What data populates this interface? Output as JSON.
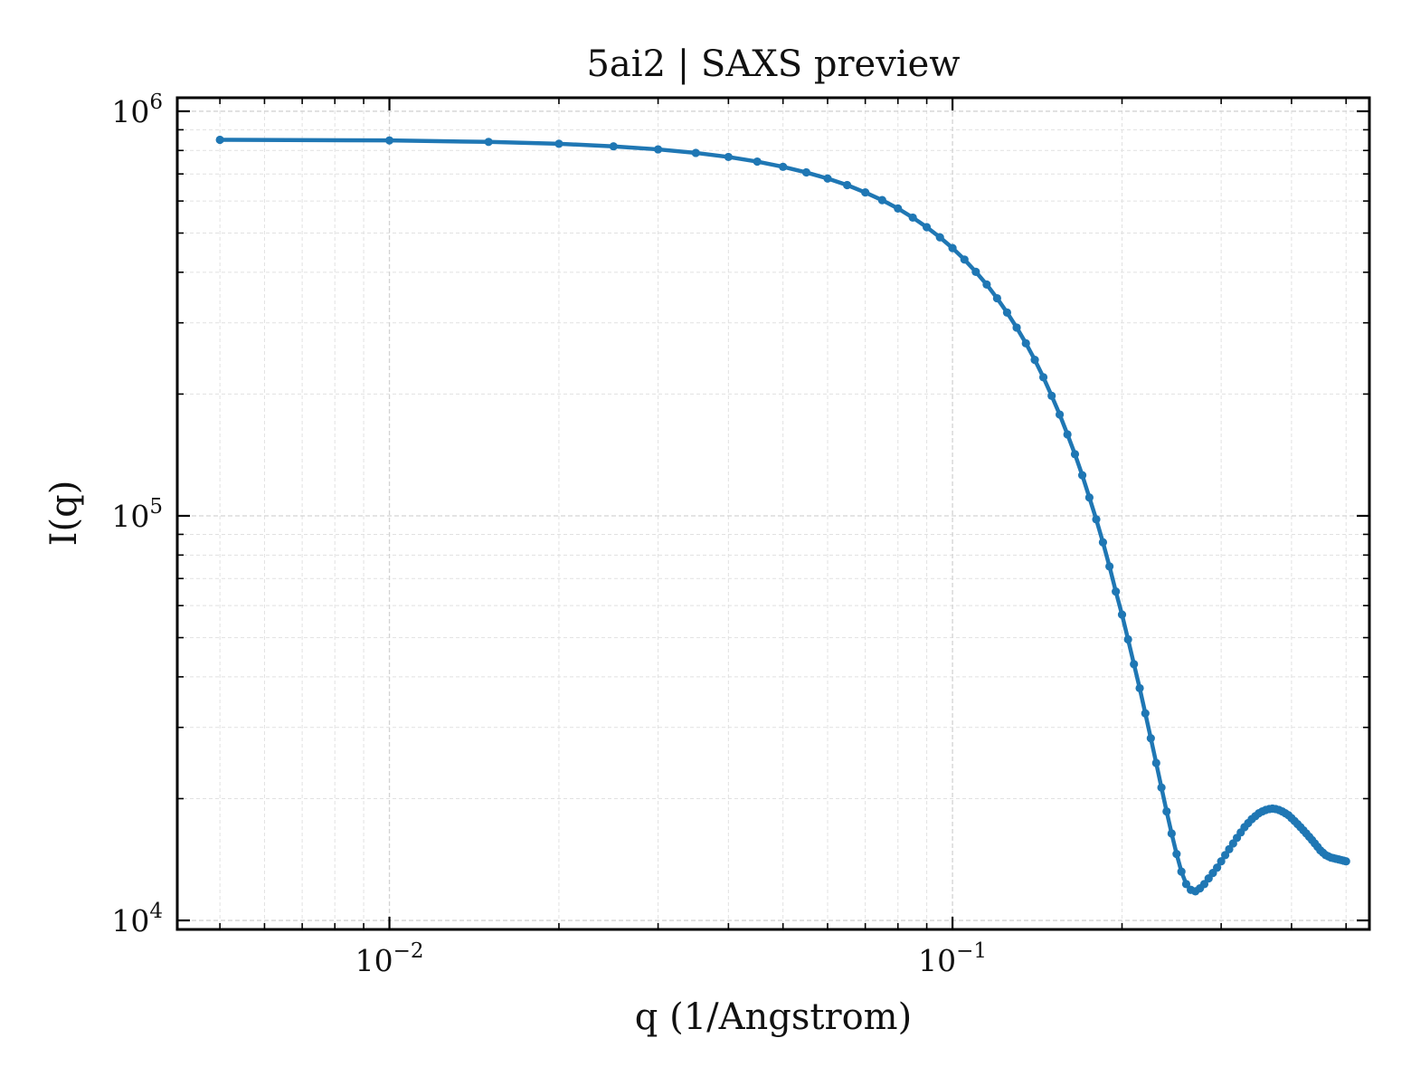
{
  "chart_data": {
    "type": "line",
    "title": "5ai2 | SAXS preview",
    "xlabel": "q (1/Angstrom)",
    "ylabel": "I(q)",
    "xscale": "log",
    "yscale": "log",
    "xlim": [
      0.0042,
      0.55
    ],
    "ylim": [
      9500,
      1080000
    ],
    "grid": true,
    "legend": "none",
    "series_color": "#1f77b4",
    "x_ticks": [
      {
        "base": "10",
        "exp": "−2",
        "value": 0.01
      },
      {
        "base": "10",
        "exp": "−1",
        "value": 0.1
      }
    ],
    "y_ticks": [
      {
        "base": "10",
        "exp": "4",
        "value": 10000
      },
      {
        "base": "10",
        "exp": "5",
        "value": 100000
      },
      {
        "base": "10",
        "exp": "6",
        "value": 1000000
      }
    ],
    "series": [
      {
        "x": [
          0.005,
          0.01,
          0.015,
          0.02,
          0.025,
          0.03,
          0.035,
          0.04,
          0.045,
          0.05,
          0.055,
          0.06,
          0.065,
          0.07,
          0.075,
          0.08,
          0.085,
          0.09,
          0.095,
          0.1,
          0.105,
          0.11,
          0.115,
          0.12,
          0.125,
          0.13,
          0.135,
          0.14,
          0.145,
          0.15,
          0.155,
          0.16,
          0.165,
          0.17,
          0.175,
          0.18,
          0.185,
          0.19,
          0.195,
          0.2,
          0.205,
          0.21,
          0.215,
          0.22,
          0.225,
          0.23,
          0.235,
          0.24,
          0.245,
          0.25,
          0.255,
          0.26,
          0.265,
          0.27,
          0.275,
          0.28,
          0.285,
          0.29,
          0.295,
          0.3,
          0.305,
          0.31,
          0.315,
          0.32,
          0.325,
          0.33,
          0.335,
          0.34,
          0.345,
          0.35,
          0.355,
          0.36,
          0.365,
          0.37,
          0.375,
          0.38,
          0.385,
          0.39,
          0.395,
          0.4,
          0.405,
          0.41,
          0.415,
          0.42,
          0.425,
          0.43,
          0.435,
          0.44,
          0.445,
          0.45,
          0.455,
          0.46,
          0.465,
          0.47,
          0.475,
          0.48,
          0.485,
          0.49,
          0.495,
          0.5
        ],
        "y": [
          850000,
          847000,
          840000,
          831000,
          819000,
          805000,
          789000,
          771000,
          751000,
          729000,
          706000,
          682000,
          657000,
          630000,
          603000,
          575000,
          546000,
          517000,
          488000,
          459000,
          430000,
          401000,
          373000,
          345000,
          318000,
          292000,
          267000,
          243000,
          220000,
          198000,
          178000,
          159000,
          142000,
          126000,
          111000,
          98000,
          86000,
          75000,
          65000,
          57000,
          49500,
          43000,
          37500,
          32500,
          28200,
          24500,
          21300,
          18600,
          16400,
          14600,
          13200,
          12300,
          11900,
          11800,
          12000,
          12300,
          12700,
          13100,
          13500,
          14000,
          14500,
          15000,
          15500,
          16000,
          16500,
          17000,
          17400,
          17800,
          18100,
          18400,
          18600,
          18750,
          18850,
          18900,
          18850,
          18750,
          18600,
          18400,
          18200,
          17900,
          17600,
          17300,
          17000,
          16700,
          16400,
          16100,
          15800,
          15500,
          15200,
          14900,
          14700,
          14500,
          14400,
          14300,
          14250,
          14200,
          14150,
          14100,
          14050,
          14000
        ]
      }
    ]
  }
}
